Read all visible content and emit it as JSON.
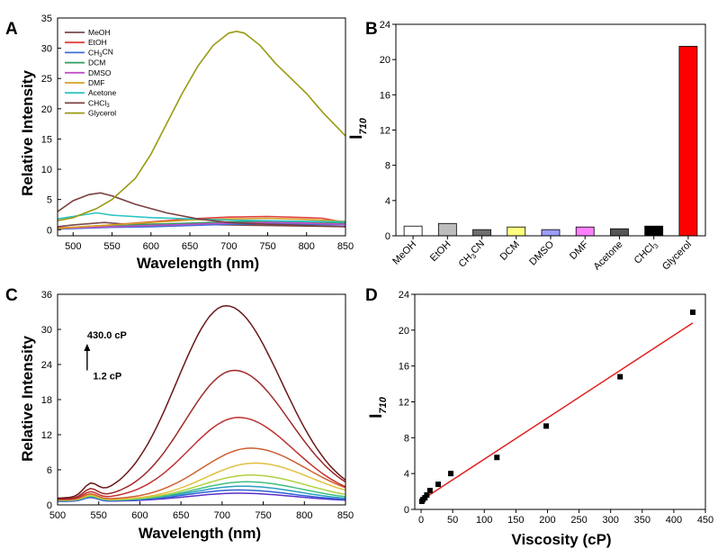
{
  "chart_data": [
    {
      "panel": "A",
      "type": "line",
      "xlabel": "Wavelength (nm)",
      "ylabel": "Relative Intensity",
      "xlim": [
        480,
        850
      ],
      "ylim": [
        -1,
        35
      ],
      "xticks": [
        500,
        550,
        600,
        650,
        700,
        750,
        800,
        850
      ],
      "yticks": [
        0,
        5,
        10,
        15,
        20,
        25,
        30,
        35
      ],
      "legend_position": "top-left",
      "series": [
        {
          "name": "MeOH",
          "color": "#7b4a4a",
          "x": [
            480,
            500,
            540,
            560,
            600,
            650,
            700,
            750,
            800,
            850
          ],
          "y": [
            0.5,
            0.8,
            1.2,
            1.0,
            0.9,
            0.9,
            0.8,
            0.7,
            0.6,
            0.5
          ]
        },
        {
          "name": "EtOH",
          "color": "#e04040",
          "x": [
            480,
            500,
            550,
            600,
            650,
            700,
            750,
            800,
            820,
            850
          ],
          "y": [
            0.3,
            0.4,
            0.8,
            1.3,
            1.8,
            2.1,
            2.2,
            2.0,
            1.9,
            1.2
          ]
        },
        {
          "name": "CH3CN",
          "color": "#3b6fd6",
          "x": [
            480,
            500,
            550,
            600,
            650,
            700,
            750,
            800,
            850
          ],
          "y": [
            0.1,
            0.2,
            0.4,
            0.5,
            0.7,
            0.9,
            1.0,
            0.9,
            0.8
          ]
        },
        {
          "name": "DCM",
          "color": "#2e9e5e",
          "x": [
            480,
            500,
            550,
            600,
            650,
            700,
            750,
            800,
            850
          ],
          "y": [
            0.2,
            0.3,
            0.6,
            0.9,
            1.1,
            1.3,
            1.4,
            1.3,
            1.1
          ]
        },
        {
          "name": "DMSO",
          "color": "#c050c8",
          "x": [
            480,
            500,
            550,
            600,
            650,
            700,
            750,
            800,
            850
          ],
          "y": [
            0.2,
            0.3,
            0.5,
            0.7,
            0.9,
            1.1,
            1.2,
            1.1,
            0.9
          ]
        },
        {
          "name": "DMF",
          "color": "#d4a020",
          "x": [
            480,
            500,
            550,
            600,
            650,
            700,
            750,
            800,
            850
          ],
          "y": [
            0.2,
            0.4,
            0.8,
            1.2,
            1.6,
            1.8,
            1.9,
            1.7,
            1.4
          ]
        },
        {
          "name": "Acetone",
          "color": "#2ec4c4",
          "x": [
            480,
            500,
            530,
            550,
            600,
            650,
            700,
            750,
            800,
            850
          ],
          "y": [
            1.8,
            2.2,
            2.8,
            2.4,
            2.0,
            1.8,
            1.6,
            1.5,
            1.4,
            1.3
          ]
        },
        {
          "name": "CHCl3",
          "color": "#7a4040",
          "x": [
            480,
            500,
            520,
            535,
            550,
            580,
            620,
            660,
            700,
            750,
            800,
            850
          ],
          "y": [
            3.0,
            4.8,
            5.8,
            6.1,
            5.6,
            4.2,
            2.8,
            1.8,
            1.2,
            0.9,
            0.7,
            0.5
          ]
        },
        {
          "name": "Glycerol",
          "color": "#9a9a14",
          "x": [
            480,
            500,
            530,
            550,
            580,
            600,
            620,
            640,
            660,
            680,
            700,
            710,
            720,
            740,
            760,
            780,
            800,
            820,
            835,
            850
          ],
          "y": [
            1.5,
            2.0,
            3.5,
            5.0,
            8.5,
            12.5,
            17.5,
            22.5,
            27.0,
            30.5,
            32.5,
            32.8,
            32.5,
            30.5,
            27.5,
            25.0,
            22.5,
            19.5,
            17.5,
            15.5
          ]
        }
      ]
    },
    {
      "panel": "B",
      "type": "bar",
      "ylabel": "I710",
      "ylim": [
        0,
        24
      ],
      "yticks": [
        0,
        4,
        8,
        12,
        16,
        20,
        24
      ],
      "categories": [
        "MeOH",
        "EtOH",
        "CH3CN",
        "DCM",
        "DMSO",
        "DMF",
        "Acetone",
        "CHCl3",
        "Glycerol"
      ],
      "values": [
        1.1,
        1.4,
        0.7,
        1.0,
        0.7,
        1.0,
        0.8,
        1.1,
        21.5
      ],
      "colors": [
        "#ffffff",
        "#bdbdbd",
        "#6e6e6e",
        "#ffff80",
        "#9d9dff",
        "#ff80ff",
        "#555555",
        "#000000",
        "#ff0000"
      ]
    },
    {
      "panel": "C",
      "type": "line",
      "xlabel": "Wavelength (nm)",
      "ylabel": "Relative Intensity",
      "xlim": [
        500,
        850
      ],
      "ylim": [
        0,
        36
      ],
      "xticks": [
        500,
        550,
        600,
        650,
        700,
        750,
        800,
        850
      ],
      "yticks": [
        0,
        6,
        12,
        18,
        24,
        30,
        36
      ],
      "annotations": [
        {
          "text": "430.0 cP",
          "x": 525,
          "y": 28.5
        },
        {
          "text": "1.2 cP",
          "x": 530,
          "y": 21.5
        }
      ],
      "series": [
        {
          "color": "#5a2ec8",
          "peak": 1.4,
          "center": 720
        },
        {
          "color": "#3060d8",
          "peak": 1.9,
          "center": 720
        },
        {
          "color": "#2aa0c0",
          "peak": 2.5,
          "center": 725
        },
        {
          "color": "#40c080",
          "peak": 3.2,
          "center": 730
        },
        {
          "color": "#b0d040",
          "peak": 4.3,
          "center": 735
        },
        {
          "color": "#e0c040",
          "peak": 6.3,
          "center": 740
        },
        {
          "color": "#d06030",
          "peak": 8.8,
          "center": 735
        },
        {
          "color": "#c03030",
          "peak": 14.0,
          "center": 720
        },
        {
          "color": "#a02828",
          "peak": 22.0,
          "center": 715
        },
        {
          "color": "#6a1818",
          "peak": 33.0,
          "center": 705
        }
      ]
    },
    {
      "panel": "D",
      "type": "scatter",
      "xlabel": "Viscosity (cP)",
      "ylabel": "I710",
      "xlim": [
        -10,
        450
      ],
      "ylim": [
        0,
        24
      ],
      "xticks": [
        0,
        50,
        100,
        150,
        200,
        250,
        300,
        350,
        400,
        450
      ],
      "yticks": [
        0,
        4,
        8,
        12,
        16,
        20,
        24
      ],
      "points": [
        {
          "x": 1.2,
          "y": 0.9
        },
        {
          "x": 3,
          "y": 1.1
        },
        {
          "x": 6,
          "y": 1.3
        },
        {
          "x": 9,
          "y": 1.6
        },
        {
          "x": 14,
          "y": 2.1
        },
        {
          "x": 27,
          "y": 2.8
        },
        {
          "x": 47,
          "y": 4.0
        },
        {
          "x": 120,
          "y": 5.8
        },
        {
          "x": 198,
          "y": 9.3
        },
        {
          "x": 315,
          "y": 14.8
        },
        {
          "x": 430,
          "y": 22.0
        }
      ],
      "fit_line": {
        "x": [
          0,
          430
        ],
        "y": [
          1.0,
          20.8
        ],
        "color": "#e02020"
      }
    }
  ]
}
